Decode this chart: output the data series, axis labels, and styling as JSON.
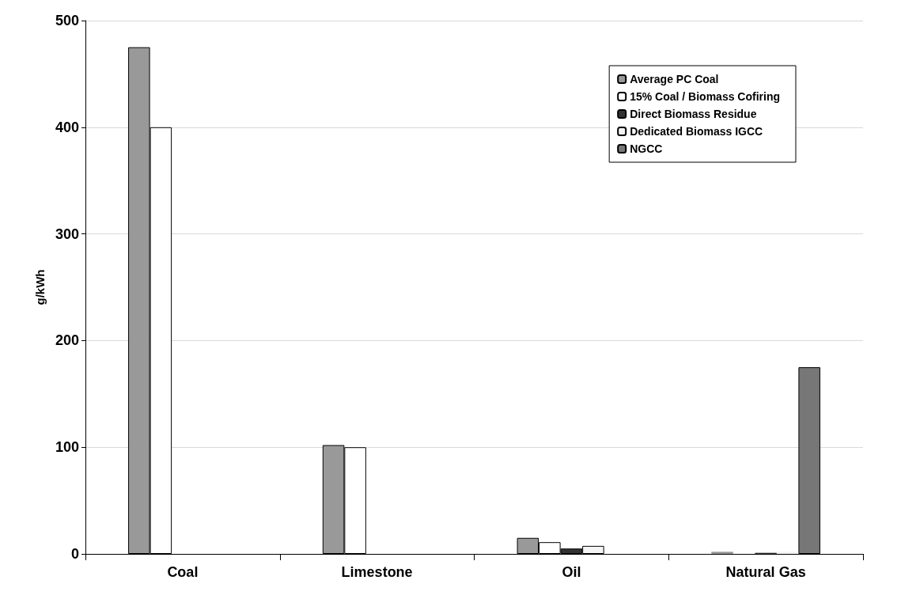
{
  "chart_data": {
    "type": "bar",
    "ylabel": "g/kWh",
    "categories": [
      "Coal",
      "Limestone",
      "Oil",
      "Natural Gas"
    ],
    "series": [
      {
        "name": "Average PC Coal",
        "color": "#999999",
        "values": [
          475,
          102,
          15,
          2
        ]
      },
      {
        "name": "15% Coal / Biomass Cofiring",
        "color": "#ffffff",
        "values": [
          400,
          100,
          11,
          null
        ]
      },
      {
        "name": "Direct Biomass Residue",
        "color": "#333333",
        "values": [
          0,
          0,
          5,
          1
        ]
      },
      {
        "name": "Dedicated Biomass IGCC",
        "color": "#f4f4f4",
        "values": [
          0,
          0,
          7.5,
          2
        ]
      },
      {
        "name": "NGCC",
        "color": "#777777",
        "values": [
          0,
          0,
          0,
          175
        ]
      }
    ],
    "ylim": [
      0,
      500
    ],
    "yticks": [
      0,
      100,
      200,
      300,
      400,
      500
    ],
    "grid": "y",
    "legend": "top right"
  }
}
